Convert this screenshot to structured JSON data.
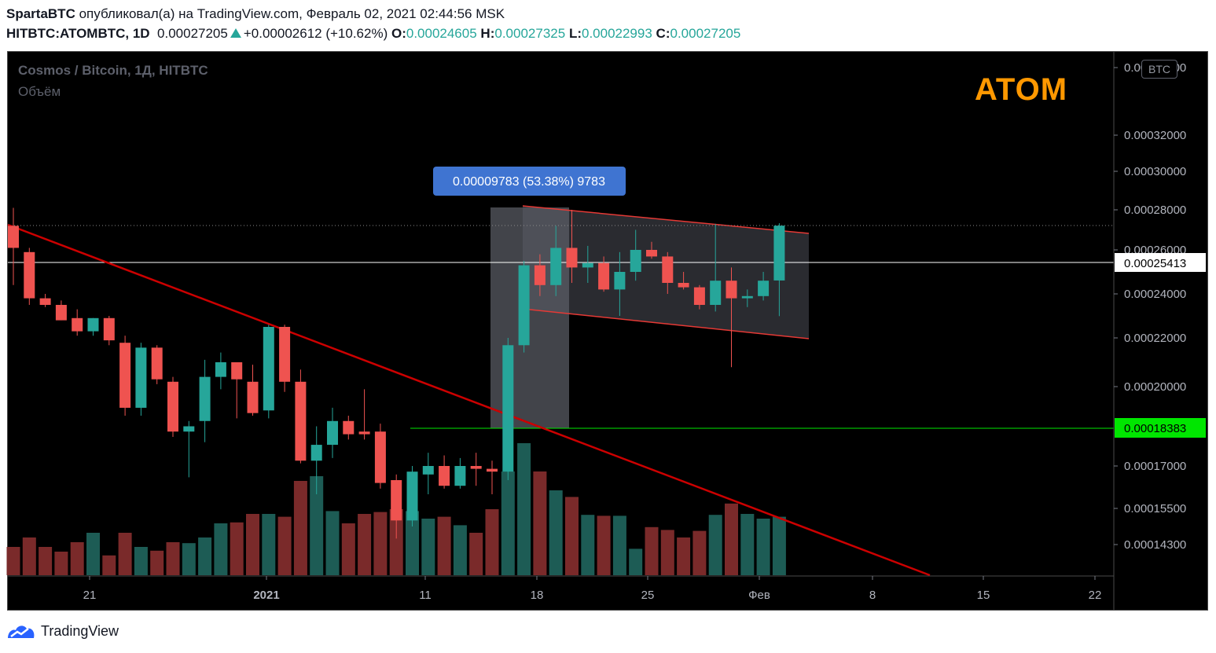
{
  "header": {
    "author": "SpartaBTC",
    "published_text": "опубликовал(а) на TradingView.com, Февраль 02, 2021 02:44:56 MSK",
    "symbol": "HITBTC:ATOMBTC, 1D",
    "last_price": "0.00027205",
    "change": "+0.00002612 (+10.62%)",
    "open_label": "O:",
    "open": "0.00024605",
    "high_label": "H:",
    "high": "0.00027325",
    "low_label": "L:",
    "low": "0.00022993",
    "close_label": "C:",
    "close": "0.00027205"
  },
  "legend": {
    "title": "Cosmos / Bitcoin, 1Д, HITBTC",
    "volume": "Объём"
  },
  "brand_label": "ATOM",
  "currency_badge": "BTC",
  "measure_label": "0.00009783 (53.38%) 9783",
  "footer": {
    "logo_text": "TradingView"
  },
  "colors": {
    "up": "#26a69a",
    "down": "#ef5350",
    "vol_up": "#1d5c55",
    "vol_down": "#7a2a2a",
    "trendline": "#cc0000",
    "channel": "#e53935",
    "support": "#00e600",
    "current": "#ffffff",
    "accent": "#ff9800"
  },
  "chart_data": {
    "type": "candlestick",
    "title": "Cosmos / Bitcoin, 1Д, HITBTC",
    "x_ticks": [
      "21",
      "2021",
      "11",
      "18",
      "25",
      "Фев",
      "8",
      "15",
      "22"
    ],
    "y_ticks": [
      "0.00014300",
      "0.00015500",
      "0.00017000",
      "0.00020000",
      "0.00022000",
      "0.00024000",
      "0.00026000",
      "0.00028000",
      "0.00030000",
      "0.00032000",
      "0.00034000"
    ],
    "price_labels": {
      "current": "0.00025413",
      "support": "0.00018383"
    },
    "candles": [
      {
        "o": 0.000272,
        "h": 0.000281,
        "l": 0.000244,
        "c": 0.000261,
        "v": 3
      },
      {
        "o": 0.000259,
        "h": 0.000261,
        "l": 0.000235,
        "c": 0.000238,
        "v": 4
      },
      {
        "o": 0.000238,
        "h": 0.00024,
        "l": 0.000234,
        "c": 0.000235,
        "v": 3
      },
      {
        "o": 0.000235,
        "h": 0.000237,
        "l": 0.000228,
        "c": 0.000228,
        "v": 2.5
      },
      {
        "o": 0.000229,
        "h": 0.000233,
        "l": 0.000221,
        "c": 0.000223,
        "v": 3.5
      },
      {
        "o": 0.000223,
        "h": 0.000229,
        "l": 0.000221,
        "c": 0.000229,
        "v": 4.5
      },
      {
        "o": 0.000229,
        "h": 0.00023,
        "l": 0.000217,
        "c": 0.000219,
        "v": 2.1
      },
      {
        "o": 0.000218,
        "h": 0.000221,
        "l": 0.000189,
        "c": 0.000192,
        "v": 4.5
      },
      {
        "o": 0.000192,
        "h": 0.000218,
        "l": 0.000189,
        "c": 0.000216,
        "v": 3
      },
      {
        "o": 0.000216,
        "h": 0.000217,
        "l": 0.000201,
        "c": 0.000203,
        "v": 2.6
      },
      {
        "o": 0.000202,
        "h": 0.000204,
        "l": 0.000181,
        "c": 0.000183,
        "v": 3.5
      },
      {
        "o": 0.000183,
        "h": 0.000187,
        "l": 0.000166,
        "c": 0.000185,
        "v": 3.4
      },
      {
        "o": 0.000187,
        "h": 0.000211,
        "l": 0.000179,
        "c": 0.000204,
        "v": 4
      },
      {
        "o": 0.000204,
        "h": 0.000214,
        "l": 0.000199,
        "c": 0.00021,
        "v": 5.5
      },
      {
        "o": 0.00021,
        "h": 0.00021,
        "l": 0.000188,
        "c": 0.000203,
        "v": 5.6
      },
      {
        "o": 0.000202,
        "h": 0.000209,
        "l": 0.000189,
        "c": 0.00019,
        "v": 6.5
      },
      {
        "o": 0.000191,
        "h": 0.000226,
        "l": 0.000188,
        "c": 0.000225,
        "v": 6.5
      },
      {
        "o": 0.000225,
        "h": 0.000226,
        "l": 0.000198,
        "c": 0.000202,
        "v": 6.2
      },
      {
        "o": 0.000202,
        "h": 0.000207,
        "l": 0.000171,
        "c": 0.000172,
        "v": 10
      },
      {
        "o": 0.000172,
        "h": 0.000185,
        "l": 0.00016,
        "c": 0.000178,
        "v": 10.5
      },
      {
        "o": 0.000178,
        "h": 0.000192,
        "l": 0.000173,
        "c": 0.000187,
        "v": 6.8
      },
      {
        "o": 0.000187,
        "h": 0.000189,
        "l": 0.00018,
        "c": 0.000182,
        "v": 5.5
      },
      {
        "o": 0.000183,
        "h": 0.000199,
        "l": 0.00018,
        "c": 0.000182,
        "v": 6.5
      },
      {
        "o": 0.000183,
        "h": 0.000186,
        "l": 0.000162,
        "c": 0.000164,
        "v": 6.7
      },
      {
        "o": 0.000165,
        "h": 0.000167,
        "l": 0.000145,
        "c": 0.000151,
        "v": 7
      },
      {
        "o": 0.000151,
        "h": 0.00017,
        "l": 0.000149,
        "c": 0.000168,
        "v": 6.8
      },
      {
        "o": 0.000167,
        "h": 0.000175,
        "l": 0.00016,
        "c": 0.00017,
        "v": 6
      },
      {
        "o": 0.00017,
        "h": 0.000174,
        "l": 0.000162,
        "c": 0.000163,
        "v": 6.2
      },
      {
        "o": 0.000163,
        "h": 0.000173,
        "l": 0.000162,
        "c": 0.00017,
        "v": 5.3
      },
      {
        "o": 0.00017,
        "h": 0.000175,
        "l": 0.000163,
        "c": 0.000169,
        "v": 4.5
      },
      {
        "o": 0.000169,
        "h": 0.000172,
        "l": 0.00016,
        "c": 0.000168,
        "v": 7
      },
      {
        "o": 0.000168,
        "h": 0.00022,
        "l": 0.000165,
        "c": 0.000217,
        "v": 11
      },
      {
        "o": 0.000217,
        "h": 0.000255,
        "l": 0.000214,
        "c": 0.000253,
        "v": 14
      },
      {
        "o": 0.000253,
        "h": 0.000258,
        "l": 0.000239,
        "c": 0.000244,
        "v": 11
      },
      {
        "o": 0.000244,
        "h": 0.000272,
        "l": 0.000239,
        "c": 0.000261,
        "v": 9
      },
      {
        "o": 0.000261,
        "h": 0.00028,
        "l": 0.000245,
        "c": 0.000252,
        "v": 8.3
      },
      {
        "o": 0.000252,
        "h": 0.000262,
        "l": 0.000245,
        "c": 0.000254,
        "v": 6.4
      },
      {
        "o": 0.000254,
        "h": 0.000257,
        "l": 0.000241,
        "c": 0.000242,
        "v": 6.3
      },
      {
        "o": 0.000242,
        "h": 0.000259,
        "l": 0.00023,
        "c": 0.00025,
        "v": 6.3
      },
      {
        "o": 0.00025,
        "h": 0.00027,
        "l": 0.000246,
        "c": 0.00026,
        "v": 2.8
      },
      {
        "o": 0.00026,
        "h": 0.000264,
        "l": 0.000256,
        "c": 0.000257,
        "v": 5.1
      },
      {
        "o": 0.000257,
        "h": 0.000259,
        "l": 0.00024,
        "c": 0.000245,
        "v": 4.8
      },
      {
        "o": 0.000245,
        "h": 0.00025,
        "l": 0.000242,
        "c": 0.000243,
        "v": 4
      },
      {
        "o": 0.000243,
        "h": 0.000244,
        "l": 0.000233,
        "c": 0.000235,
        "v": 4.7
      },
      {
        "o": 0.000235,
        "h": 0.000273,
        "l": 0.000232,
        "c": 0.000246,
        "v": 6.4
      },
      {
        "o": 0.000246,
        "h": 0.000252,
        "l": 0.000208,
        "c": 0.000238,
        "v": 7.6
      },
      {
        "o": 0.000238,
        "h": 0.000242,
        "l": 0.000234,
        "c": 0.000239,
        "v": 6.5
      },
      {
        "o": 0.000239,
        "h": 0.00025,
        "l": 0.000237,
        "c": 0.000246,
        "v": 6
      },
      {
        "o": 0.0002461,
        "h": 0.0002733,
        "l": 0.0002299,
        "c": 0.0002721,
        "v": 6.2
      }
    ]
  }
}
